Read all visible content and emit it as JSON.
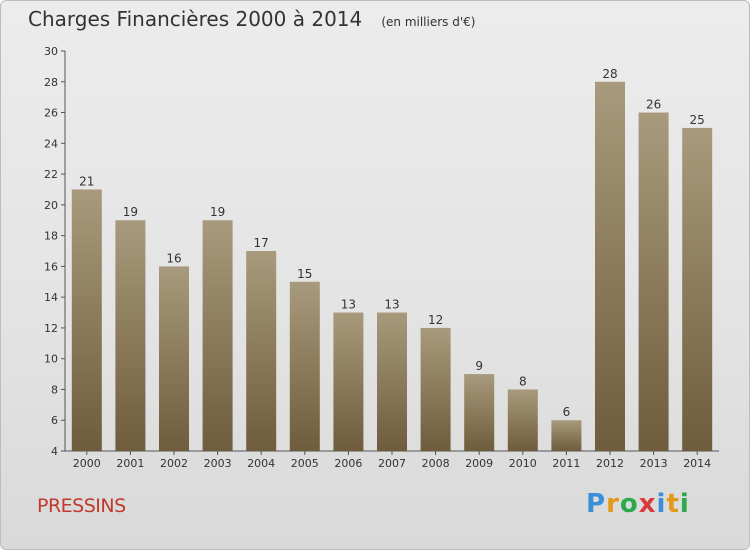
{
  "header": {
    "title": "Charges Financières 2000 à 2014",
    "subtitle": "(en milliers d'€)"
  },
  "footer": {
    "commune": "PRESSINS",
    "logo_letters": [
      "P",
      "r",
      "o",
      "x",
      "i",
      "t",
      "i"
    ],
    "logo_colors": [
      "#3b8fd9",
      "#e39a1b",
      "#2ea84c",
      "#d83a3a",
      "#3b8fd9",
      "#e39a1b",
      "#2ea84c"
    ]
  },
  "colors": {
    "bar_top": "#a89a7c",
    "bar_bottom": "#6e5c3c",
    "commune": "#c0392b"
  },
  "chart_data": {
    "type": "bar",
    "title": "Charges Financières 2000 à 2014",
    "subtitle": "(en milliers d'€)",
    "categories": [
      "2000",
      "2001",
      "2002",
      "2003",
      "2004",
      "2005",
      "2006",
      "2007",
      "2008",
      "2009",
      "2010",
      "2011",
      "2012",
      "2013",
      "2014"
    ],
    "values": [
      21,
      19,
      16,
      19,
      17,
      15,
      13,
      13,
      12,
      9,
      8,
      6,
      28,
      26,
      25
    ],
    "ylim": [
      4,
      30
    ],
    "yticks": [
      4,
      6,
      8,
      10,
      12,
      14,
      16,
      18,
      20,
      22,
      24,
      26,
      28,
      30
    ],
    "grid": false,
    "data_labels": true
  }
}
